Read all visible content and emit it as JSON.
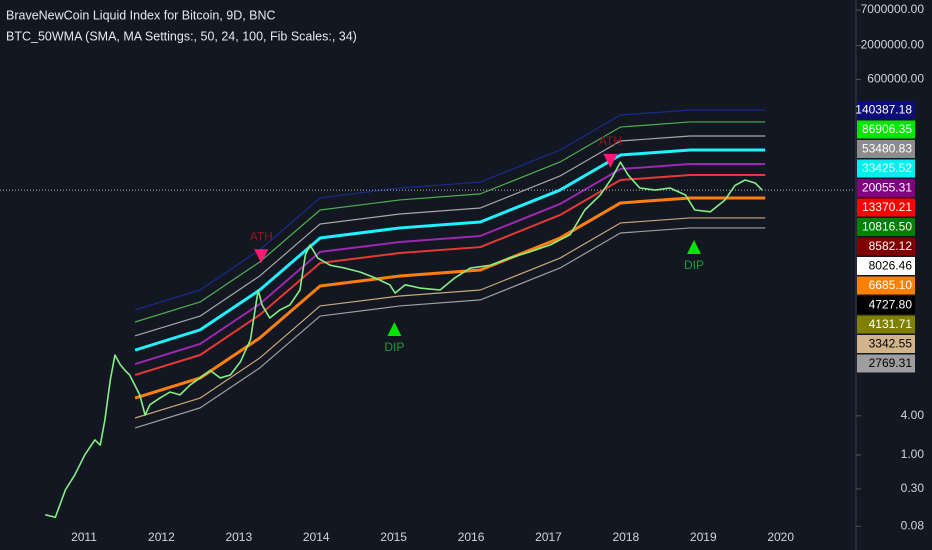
{
  "chart_data": {
    "type": "line",
    "title": "BraveNewCoin Liquid Index for Bitcoin, 9D, BNC",
    "subtitle": "BTC_50WMA (SMA, MA Settings:, 50, 24, 100, Fib Scales:, 34)",
    "log_scale": true,
    "grid": false,
    "xlim": [
      2009.915,
      2020.96
    ],
    "xticks": [
      2011,
      2012,
      2013,
      2014,
      2015,
      2016,
      2017,
      2018,
      2019,
      2020
    ],
    "ylim": [
      0.07,
      10000000
    ],
    "yticks": [
      {
        "value": 7000000,
        "label": "7000000.00"
      },
      {
        "value": 2000000,
        "label": "2000000.00"
      },
      {
        "value": 600000,
        "label": "600000.00"
      },
      {
        "value": 4,
        "label": "4.00"
      },
      {
        "value": 1,
        "label": "1.00"
      },
      {
        "value": 0.3,
        "label": "0.30"
      },
      {
        "value": 0.08,
        "label": "0.08"
      }
    ],
    "series": [
      {
        "color": "#1a2a8c",
        "line_width": 1.2,
        "x": [
          2011.66,
          2012.5,
          2013.27,
          2014.05,
          2015.08,
          2016.12,
          2017.15,
          2017.93,
          2018.83,
          2019.8
        ],
        "values": [
          170,
          345,
          1430,
          9000,
          12800,
          15800,
          49200,
          170000,
          203000,
          203000
        ]
      },
      {
        "color": "#4caf50",
        "line_width": 1.2,
        "x": [
          2011.66,
          2012.5,
          2013.27,
          2014.05,
          2015.08,
          2016.12,
          2017.15,
          2017.93,
          2018.83,
          2019.8
        ],
        "values": [
          111,
          226,
          931,
          5870,
          8380,
          10400,
          32200,
          111000,
          133000,
          133000
        ]
      },
      {
        "color": "#a8a8a8",
        "line_width": 1.2,
        "x": [
          2011.66,
          2012.5,
          2013.27,
          2014.05,
          2015.08,
          2016.12,
          2017.15,
          2017.93,
          2018.83,
          2019.8
        ],
        "values": [
          68,
          137,
          567,
          3580,
          5100,
          6310,
          19600,
          67700,
          80900,
          80900
        ]
      },
      {
        "color": "#20f0ff",
        "line_width": 3,
        "x": [
          2011.66,
          2012.5,
          2013.27,
          2014.05,
          2015.08,
          2016.12,
          2017.15,
          2017.93,
          2018.83,
          2019.8
        ],
        "values": [
          41,
          84,
          345,
          2180,
          3110,
          3840,
          11900,
          41200,
          49200,
          49200
        ]
      },
      {
        "color": "#9c27b0",
        "line_width": 2,
        "x": [
          2011.66,
          2012.5,
          2013.27,
          2014.05,
          2015.08,
          2016.12,
          2017.15,
          2017.93,
          2018.83,
          2019.8
        ],
        "values": [
          25,
          51,
          210,
          1330,
          1890,
          2340,
          7270,
          25100,
          30000,
          30000
        ]
      },
      {
        "color": "#e53935",
        "line_width": 2,
        "x": [
          2011.66,
          2012.5,
          2013.27,
          2014.05,
          2015.08,
          2016.12,
          2017.15,
          2017.93,
          2018.83,
          2019.8
        ],
        "values": [
          17,
          34.5,
          143,
          899,
          1280,
          1580,
          4920,
          17000,
          20300,
          20300
        ]
      },
      {
        "color": "#ff7f0e",
        "line_width": 3,
        "x": [
          2011.66,
          2012.5,
          2013.27,
          2014.05,
          2015.08,
          2016.12,
          2017.15,
          2017.93,
          2018.83,
          2019.8
        ],
        "values": [
          7.5,
          15.3,
          63,
          398,
          567,
          700,
          2180,
          7530,
          9000,
          9000
        ]
      },
      {
        "color": "#c8a878",
        "line_width": 1.2,
        "x": [
          2011.66,
          2012.5,
          2013.27,
          2014.05,
          2015.08,
          2016.12,
          2017.15,
          2017.93,
          2018.83,
          2019.8
        ],
        "values": [
          3.7,
          7.5,
          31,
          196,
          279,
          345,
          1070,
          3710,
          4430,
          4430
        ]
      },
      {
        "color": "#9e9e9e",
        "line_width": 1.2,
        "x": [
          2011.66,
          2012.5,
          2013.27,
          2014.05,
          2015.08,
          2016.12,
          2017.15,
          2017.93,
          2018.83,
          2019.8
        ],
        "values": [
          2.6,
          5.3,
          21.8,
          137,
          196,
          243,
          753,
          2600,
          3110,
          3110
        ]
      },
      {
        "color": "#86ee86",
        "line_width": 1.6,
        "x": [
          2010.5,
          2010.63,
          2010.76,
          2010.88,
          2011.01,
          2011.14,
          2011.21,
          2011.27,
          2011.34,
          2011.4,
          2011.47,
          2011.53,
          2011.59,
          2011.72,
          2011.79,
          2011.85,
          2011.98,
          2012.11,
          2012.24,
          2012.37,
          2012.5,
          2012.63,
          2012.76,
          2012.89,
          2013.02,
          2013.15,
          2013.25,
          2013.3,
          2013.4,
          2013.53,
          2013.66,
          2013.79,
          2013.86,
          2013.92,
          2014.02,
          2014.18,
          2014.37,
          2014.57,
          2014.76,
          2014.95,
          2015.02,
          2015.15,
          2015.34,
          2015.6,
          2015.79,
          2015.99,
          2016.25,
          2016.5,
          2016.76,
          2017.02,
          2017.28,
          2017.47,
          2017.67,
          2017.82,
          2017.93,
          2018.03,
          2018.18,
          2018.38,
          2018.57,
          2018.77,
          2018.89,
          2019.09,
          2019.28,
          2019.41,
          2019.54,
          2019.67,
          2019.76
        ],
        "values": [
          0.12,
          0.11,
          0.29,
          0.49,
          1.0,
          1.7,
          1.42,
          3.45,
          14.3,
          34.5,
          24.3,
          20,
          17,
          8.4,
          4.1,
          5.9,
          7.5,
          9.3,
          8.4,
          11.9,
          15.3,
          20,
          15.3,
          17,
          27,
          59,
          345,
          203,
          128,
          170,
          203,
          345,
          1200,
          1700,
          1070,
          830,
          750,
          650,
          530,
          415,
          310,
          415,
          370,
          345,
          530,
          750,
          830,
          1070,
          1330,
          1700,
          2450,
          5870,
          10000,
          18300,
          32000,
          20200,
          12800,
          11900,
          12800,
          10000,
          5870,
          5500,
          8380,
          14000,
          17000,
          15300,
          11900
        ],
        "price_line": true
      }
    ],
    "annotations": [
      {
        "text": "ATH",
        "x": 2013.29,
        "y": 830,
        "direction": "down",
        "color": "#ff1a75",
        "text_color": "#8b1a1a"
      },
      {
        "text": "ATH",
        "x": 2017.8,
        "y": 24300,
        "direction": "down",
        "color": "#ff1a75",
        "text_color": "#8b1a1a"
      },
      {
        "text": "DIP",
        "x": 2015.01,
        "y": 119,
        "direction": "up",
        "color": "#00e600",
        "text_color": "#1f9e3a"
      },
      {
        "text": "DIP",
        "x": 2018.88,
        "y": 2180,
        "direction": "up",
        "color": "#00e600",
        "text_color": "#1f9e3a"
      }
    ],
    "price_labels": [
      {
        "value": 140387.18,
        "label": "140387.18",
        "color": "#0d0d7a"
      },
      {
        "value": 86906.35,
        "label": "86906.35",
        "color": "#00e600"
      },
      {
        "value": 53480.83,
        "label": "53480.83",
        "color": "#8c8c8c"
      },
      {
        "value": 33425.52,
        "label": "33425.52",
        "color": "#00f0f0"
      },
      {
        "value": 20055.31,
        "label": "20055.31",
        "color": "#800080"
      },
      {
        "value": 13370.21,
        "label": "13370.21",
        "color": "#ff0000"
      },
      {
        "value": 10816.5,
        "label": "10816.50",
        "color": "#008000"
      },
      {
        "value": 8582.12,
        "label": "8582.12",
        "color": "#800000"
      },
      {
        "value": 8026.46,
        "label": "8026.46",
        "color": "#ffffff"
      },
      {
        "value": 6685.1,
        "label": "6685.10",
        "color": "#ff7f00"
      },
      {
        "value": 4727.8,
        "label": "4727.80",
        "color": "#000000"
      },
      {
        "value": 4131.71,
        "label": "4131.71",
        "color": "#808000"
      },
      {
        "value": 3342.55,
        "label": "3342.55",
        "color": "#d2b48c"
      },
      {
        "value": 2769.31,
        "label": "2769.31",
        "color": "#9e9e9e"
      }
    ]
  }
}
